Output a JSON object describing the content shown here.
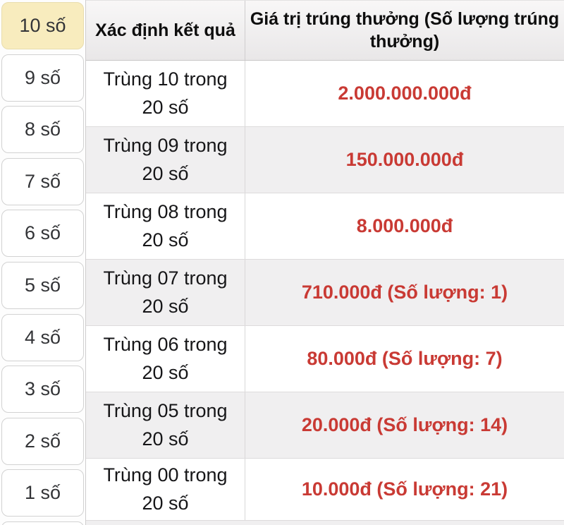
{
  "sidebar": {
    "items": [
      {
        "label": "10 số",
        "selected": true
      },
      {
        "label": "9 số",
        "selected": false
      },
      {
        "label": "8 số",
        "selected": false
      },
      {
        "label": "7 số",
        "selected": false
      },
      {
        "label": "6 số",
        "selected": false
      },
      {
        "label": "5 số",
        "selected": false
      },
      {
        "label": "4 số",
        "selected": false
      },
      {
        "label": "3 số",
        "selected": false
      },
      {
        "label": "2 số",
        "selected": false
      },
      {
        "label": "1 số",
        "selected": false
      }
    ]
  },
  "table": {
    "header": {
      "col1": "Xác định kết quả",
      "col2": "Giá trị trúng thưởng (Số lượng trúng thưởng)"
    },
    "rows": [
      {
        "match_line1": "Trùng 10 trong",
        "match_line2": "20 số",
        "prize": "2.000.000.000đ"
      },
      {
        "match_line1": "Trùng 09 trong",
        "match_line2": "20 số",
        "prize": "150.000.000đ"
      },
      {
        "match_line1": "Trùng 08 trong",
        "match_line2": "20 số",
        "prize": "8.000.000đ"
      },
      {
        "match_line1": "Trùng 07 trong",
        "match_line2": "20 số",
        "prize": "710.000đ (Số lượng: 1)"
      },
      {
        "match_line1": "Trùng 06 trong",
        "match_line2": "20 số",
        "prize": "80.000đ (Số lượng: 7)"
      },
      {
        "match_line1": "Trùng 05 trong",
        "match_line2": "20 số",
        "prize": "20.000đ (Số lượng: 14)"
      },
      {
        "match_line1": "Trùng 00 trong",
        "match_line2": "20 số",
        "prize": "10.000đ (Số lượng: 21)"
      }
    ]
  },
  "colors": {
    "prize_red": "#c93a34",
    "selected_yellow": "#f8ecbe",
    "row_alt_gray": "#f0eff0",
    "header_gradient_top": "#f8f7f7",
    "header_gradient_bottom": "#e9e7e8"
  }
}
